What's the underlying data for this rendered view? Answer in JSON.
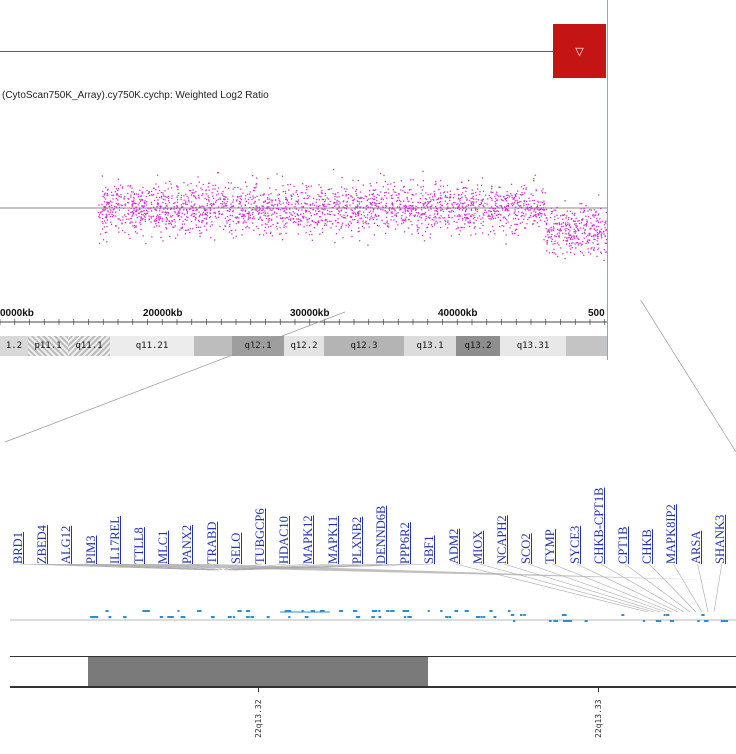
{
  "track": {
    "label": "(CytoScan750K_Array).cy750K.cychp: Weighted Log2 Ratio",
    "alert_icon": "triangle-down-icon",
    "point_color": "#d030d0"
  },
  "kb_axis": {
    "labels": [
      "0000kb",
      "20000kb",
      "30000kb",
      "40000kb",
      "500"
    ]
  },
  "ideogram": {
    "bands": [
      {
        "label": "1.2"
      },
      {
        "label": "p11.1"
      },
      {
        "label": "q11.1"
      },
      {
        "label": "q11.21"
      },
      {
        "label": ""
      },
      {
        "label": "q12.1"
      },
      {
        "label": "q12.2"
      },
      {
        "label": "q12.3"
      },
      {
        "label": "q13.1"
      },
      {
        "label": "q13.2"
      },
      {
        "label": "q13.31"
      },
      {
        "label": ""
      }
    ]
  },
  "genes": [
    "BRD1",
    "ZBED4",
    "ALG12",
    "PIM3",
    "IL17REL",
    "TTLL8",
    "MLC1",
    "PANX2",
    "TRABD",
    "SELO",
    "TUBGCP6",
    "HDAC10",
    "MAPK12",
    "MAPK11",
    "PLXNB2",
    "DENND6B",
    "PPP6R2",
    "SBF1",
    "ADM2",
    "MIOX",
    "NCAPH2",
    "SCO2",
    "TYMP",
    "SYCE3",
    "CHKB-CPT1B",
    "CPT1B",
    "CHKB",
    "MAPK8IP2",
    "ARSA",
    "SHANK3"
  ],
  "coordinates": [
    "22q13.32",
    "22q13.33"
  ]
}
